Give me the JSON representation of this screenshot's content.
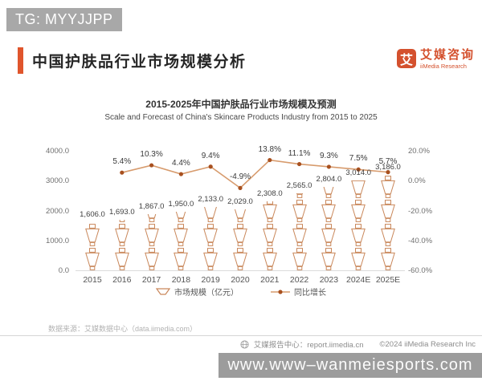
{
  "watermark_top": "TG: MYYJJPP",
  "header": {
    "title": "中国护肤品行业市场规模分析",
    "logo": {
      "glyph": "艾",
      "name_cn": "艾媒咨询",
      "name_en": "iiMedia Research"
    }
  },
  "chart_data": {
    "type": "bar+line",
    "title": "2015-2025年中国护肤品行业市场规模及预测",
    "subtitle": "Scale and Forecast of China's Skincare Products Industry from 2015 to 2025",
    "categories": [
      "2015",
      "2016",
      "2017",
      "2018",
      "2019",
      "2020",
      "2021",
      "2022",
      "2023",
      "2024E",
      "2025E"
    ],
    "series": [
      {
        "name": "市场规模（亿元）",
        "type": "pictogram-bar",
        "values": [
          1606,
          1693,
          1867,
          1950,
          2133,
          2029,
          2308,
          2565,
          2804,
          3014,
          3186
        ],
        "labels": [
          "1,606.0",
          "1,693.0",
          "1,867.0",
          "1,950.0",
          "2,133.0",
          "2,029.0",
          "2,308.0",
          "2,565.0",
          "2,804.0",
          "3,014.0",
          "3,186.0"
        ]
      },
      {
        "name": "同比增长",
        "type": "line",
        "values": [
          null,
          5.4,
          10.3,
          4.4,
          9.4,
          -4.9,
          13.8,
          11.1,
          9.3,
          7.5,
          5.7
        ],
        "labels": [
          "",
          "5.4%",
          "10.3%",
          "4.4%",
          "9.4%",
          "-4.9%",
          "13.8%",
          "11.1%",
          "9.3%",
          "7.5%",
          "5.7%"
        ]
      }
    ],
    "left_axis": {
      "ticks": [
        "4000.0",
        "3000.0",
        "2000.0",
        "1000.0",
        "0.0"
      ],
      "min": 0,
      "max": 4000
    },
    "right_axis": {
      "ticks": [
        "20.0%",
        "0.0%",
        "-20.0%",
        "-40.0%",
        "-60.0%"
      ],
      "min": -60,
      "max": 20
    },
    "grid": "off",
    "legend_position": "bottom"
  },
  "legend": [
    {
      "icon": "bottle-icon",
      "label": "市场规模（亿元）"
    },
    {
      "icon": "line-marker-icon",
      "label": "同比增长"
    }
  ],
  "source_note": "数据来源：艾媒数据中心（data.iimedia.com）",
  "footer": {
    "report_center": "艾媒报告中心：report.iimedia.cn",
    "copyright": "©2024  iiMedia Research  Inc"
  },
  "watermark_bottom": "www.www–wanmeiesports.com",
  "colors": {
    "accent": "#e0552c",
    "logo_orange": "#d4512e",
    "bottle_outline": "#c9875a",
    "line": "#d79b6d",
    "marker": "#a8501f",
    "gray_box": "#a8a8a8"
  }
}
